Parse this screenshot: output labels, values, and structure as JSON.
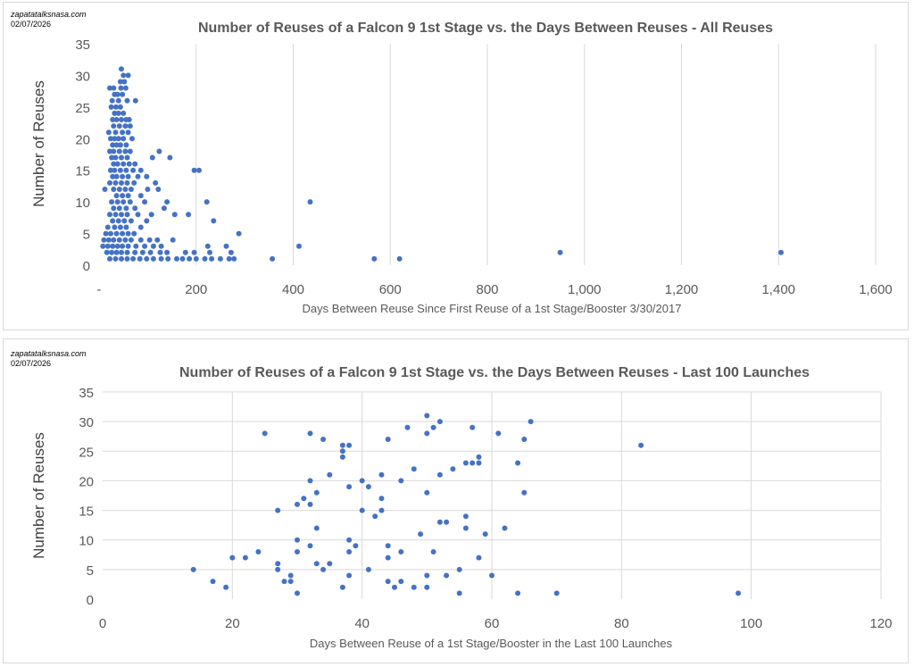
{
  "chart_data": [
    {
      "type": "scatter",
      "title": "Number of Reuses of a Falcon 9 1st Stage vs. the Days Between Reuses - All Reuses",
      "credit_site": "zapatatalksnasa.com",
      "credit_date": "02/07/2026",
      "xlabel": "Days Between Reuse Since First Reuse of a 1st Stage/Booster 3/30/2017",
      "ylabel": "Number of Reuses",
      "xlim": [
        0,
        1600
      ],
      "ylim": [
        0,
        35
      ],
      "x_ticks": [
        "-",
        "200",
        "400",
        "600",
        "800",
        "1,000",
        "1,200",
        "1,400",
        "1,600"
      ],
      "y_ticks": [
        "0",
        "5",
        "10",
        "15",
        "20",
        "25",
        "30",
        "35"
      ],
      "grid": "vertical",
      "color": "#4472c4",
      "points": [
        [
          46,
          31
        ],
        [
          50,
          30
        ],
        [
          60,
          30
        ],
        [
          44,
          29
        ],
        [
          52,
          29
        ],
        [
          22,
          28
        ],
        [
          30,
          28
        ],
        [
          45,
          28
        ],
        [
          55,
          28
        ],
        [
          32,
          27
        ],
        [
          38,
          27
        ],
        [
          48,
          27
        ],
        [
          27,
          26
        ],
        [
          40,
          26
        ],
        [
          58,
          26
        ],
        [
          75,
          26
        ],
        [
          25,
          25
        ],
        [
          35,
          25
        ],
        [
          44,
          25
        ],
        [
          32,
          24
        ],
        [
          40,
          24
        ],
        [
          50,
          24
        ],
        [
          28,
          23
        ],
        [
          36,
          23
        ],
        [
          46,
          23
        ],
        [
          56,
          23
        ],
        [
          62,
          23
        ],
        [
          30,
          22
        ],
        [
          42,
          22
        ],
        [
          54,
          22
        ],
        [
          64,
          22
        ],
        [
          20,
          21
        ],
        [
          34,
          21
        ],
        [
          48,
          21
        ],
        [
          60,
          21
        ],
        [
          24,
          20
        ],
        [
          32,
          20
        ],
        [
          40,
          20
        ],
        [
          50,
          20
        ],
        [
          68,
          20
        ],
        [
          28,
          19
        ],
        [
          36,
          19
        ],
        [
          44,
          19
        ],
        [
          56,
          19
        ],
        [
          22,
          18
        ],
        [
          30,
          18
        ],
        [
          42,
          18
        ],
        [
          54,
          18
        ],
        [
          64,
          18
        ],
        [
          124,
          18
        ],
        [
          26,
          17
        ],
        [
          34,
          17
        ],
        [
          46,
          17
        ],
        [
          58,
          17
        ],
        [
          110,
          17
        ],
        [
          146,
          17
        ],
        [
          30,
          16
        ],
        [
          38,
          16
        ],
        [
          50,
          16
        ],
        [
          62,
          16
        ],
        [
          74,
          16
        ],
        [
          24,
          15
        ],
        [
          32,
          15
        ],
        [
          44,
          15
        ],
        [
          56,
          15
        ],
        [
          70,
          15
        ],
        [
          86,
          15
        ],
        [
          196,
          15
        ],
        [
          206,
          15
        ],
        [
          28,
          14
        ],
        [
          36,
          14
        ],
        [
          48,
          14
        ],
        [
          60,
          14
        ],
        [
          80,
          14
        ],
        [
          98,
          14
        ],
        [
          22,
          13
        ],
        [
          34,
          13
        ],
        [
          46,
          13
        ],
        [
          58,
          13
        ],
        [
          72,
          13
        ],
        [
          116,
          13
        ],
        [
          12,
          12
        ],
        [
          30,
          12
        ],
        [
          42,
          12
        ],
        [
          54,
          12
        ],
        [
          66,
          12
        ],
        [
          100,
          12
        ],
        [
          122,
          12
        ],
        [
          36,
          11
        ],
        [
          48,
          11
        ],
        [
          60,
          11
        ],
        [
          86,
          11
        ],
        [
          26,
          10
        ],
        [
          38,
          10
        ],
        [
          50,
          10
        ],
        [
          64,
          10
        ],
        [
          94,
          10
        ],
        [
          140,
          10
        ],
        [
          222,
          10
        ],
        [
          435,
          10
        ],
        [
          30,
          9
        ],
        [
          42,
          9
        ],
        [
          56,
          9
        ],
        [
          74,
          9
        ],
        [
          134,
          9
        ],
        [
          22,
          8
        ],
        [
          34,
          8
        ],
        [
          46,
          8
        ],
        [
          58,
          8
        ],
        [
          80,
          8
        ],
        [
          108,
          8
        ],
        [
          156,
          8
        ],
        [
          184,
          8
        ],
        [
          28,
          7
        ],
        [
          40,
          7
        ],
        [
          52,
          7
        ],
        [
          66,
          7
        ],
        [
          98,
          7
        ],
        [
          236,
          7
        ],
        [
          18,
          6
        ],
        [
          32,
          6
        ],
        [
          44,
          6
        ],
        [
          56,
          6
        ],
        [
          86,
          6
        ],
        [
          14,
          5
        ],
        [
          24,
          5
        ],
        [
          36,
          5
        ],
        [
          48,
          5
        ],
        [
          60,
          5
        ],
        [
          72,
          5
        ],
        [
          288,
          5
        ],
        [
          10,
          4
        ],
        [
          20,
          4
        ],
        [
          30,
          4
        ],
        [
          42,
          4
        ],
        [
          54,
          4
        ],
        [
          66,
          4
        ],
        [
          86,
          4
        ],
        [
          104,
          4
        ],
        [
          120,
          4
        ],
        [
          152,
          4
        ],
        [
          8,
          3
        ],
        [
          18,
          3
        ],
        [
          28,
          3
        ],
        [
          38,
          3
        ],
        [
          48,
          3
        ],
        [
          60,
          3
        ],
        [
          76,
          3
        ],
        [
          94,
          3
        ],
        [
          112,
          3
        ],
        [
          128,
          3
        ],
        [
          224,
          3
        ],
        [
          262,
          3
        ],
        [
          412,
          3
        ],
        [
          16,
          2
        ],
        [
          26,
          2
        ],
        [
          36,
          2
        ],
        [
          46,
          2
        ],
        [
          58,
          2
        ],
        [
          74,
          2
        ],
        [
          90,
          2
        ],
        [
          106,
          2
        ],
        [
          126,
          2
        ],
        [
          140,
          2
        ],
        [
          178,
          2
        ],
        [
          196,
          2
        ],
        [
          228,
          2
        ],
        [
          272,
          2
        ],
        [
          950,
          2
        ],
        [
          1405,
          2
        ],
        [
          22,
          1
        ],
        [
          34,
          1
        ],
        [
          46,
          1
        ],
        [
          58,
          1
        ],
        [
          70,
          1
        ],
        [
          84,
          1
        ],
        [
          98,
          1
        ],
        [
          112,
          1
        ],
        [
          128,
          1
        ],
        [
          142,
          1
        ],
        [
          160,
          1
        ],
        [
          172,
          1
        ],
        [
          186,
          1
        ],
        [
          200,
          1
        ],
        [
          218,
          1
        ],
        [
          232,
          1
        ],
        [
          250,
          1
        ],
        [
          268,
          1
        ],
        [
          278,
          1
        ],
        [
          357,
          1
        ],
        [
          567,
          1
        ],
        [
          619,
          1
        ]
      ]
    },
    {
      "type": "scatter",
      "title": "Number of Reuses of a Falcon 9 1st Stage vs. the Days Between Reuses - Last 100 Launches",
      "credit_site": "zapatatalksnasa.com",
      "credit_date": "02/07/2026",
      "xlabel": "Days Between Reuse of a 1st Stage/Booster in the Last 100 Launches",
      "ylabel": "Number of Reuses",
      "xlim": [
        0,
        120
      ],
      "ylim": [
        0,
        35
      ],
      "x_ticks": [
        "0",
        "20",
        "40",
        "60",
        "80",
        "100",
        "120"
      ],
      "y_ticks": [
        "0",
        "5",
        "10",
        "15",
        "20",
        "25",
        "30",
        "35"
      ],
      "grid": "both",
      "color": "#4472c4",
      "points": [
        [
          14,
          5
        ],
        [
          17,
          3
        ],
        [
          19,
          2
        ],
        [
          20,
          7
        ],
        [
          22,
          7
        ],
        [
          24,
          8
        ],
        [
          25,
          28
        ],
        [
          27,
          15
        ],
        [
          27,
          6
        ],
        [
          27,
          5
        ],
        [
          28,
          3
        ],
        [
          29,
          4
        ],
        [
          29,
          3
        ],
        [
          30,
          16
        ],
        [
          30,
          10
        ],
        [
          30,
          8
        ],
        [
          30,
          1
        ],
        [
          31,
          17
        ],
        [
          32,
          28
        ],
        [
          32,
          20
        ],
        [
          32,
          16
        ],
        [
          32,
          9
        ],
        [
          33,
          18
        ],
        [
          33,
          12
        ],
        [
          33,
          6
        ],
        [
          34,
          27
        ],
        [
          34,
          5
        ],
        [
          35,
          21
        ],
        [
          35,
          6
        ],
        [
          37,
          26
        ],
        [
          37,
          25
        ],
        [
          37,
          24
        ],
        [
          37,
          2
        ],
        [
          38,
          26
        ],
        [
          38,
          19
        ],
        [
          38,
          10
        ],
        [
          38,
          8
        ],
        [
          38,
          4
        ],
        [
          39,
          9
        ],
        [
          40,
          20
        ],
        [
          40,
          15
        ],
        [
          41,
          19
        ],
        [
          41,
          5
        ],
        [
          42,
          14
        ],
        [
          43,
          21
        ],
        [
          43,
          17
        ],
        [
          43,
          15
        ],
        [
          44,
          27
        ],
        [
          44,
          9
        ],
        [
          44,
          7
        ],
        [
          44,
          3
        ],
        [
          45,
          2
        ],
        [
          46,
          20
        ],
        [
          46,
          8
        ],
        [
          46,
          3
        ],
        [
          47,
          29
        ],
        [
          48,
          22
        ],
        [
          48,
          2
        ],
        [
          49,
          11
        ],
        [
          50,
          31
        ],
        [
          50,
          28
        ],
        [
          50,
          18
        ],
        [
          50,
          4
        ],
        [
          50,
          2
        ],
        [
          51,
          29
        ],
        [
          51,
          8
        ],
        [
          52,
          30
        ],
        [
          52,
          21
        ],
        [
          52,
          13
        ],
        [
          53,
          13
        ],
        [
          53,
          4
        ],
        [
          54,
          22
        ],
        [
          55,
          5
        ],
        [
          55,
          1
        ],
        [
          56,
          23
        ],
        [
          56,
          14
        ],
        [
          56,
          12
        ],
        [
          57,
          29
        ],
        [
          57,
          23
        ],
        [
          58,
          24
        ],
        [
          58,
          23
        ],
        [
          58,
          7
        ],
        [
          59,
          11
        ],
        [
          60,
          4
        ],
        [
          61,
          28
        ],
        [
          62,
          12
        ],
        [
          64,
          23
        ],
        [
          64,
          1
        ],
        [
          65,
          27
        ],
        [
          65,
          18
        ],
        [
          66,
          30
        ],
        [
          70,
          1
        ],
        [
          83,
          26
        ],
        [
          98,
          1
        ]
      ]
    }
  ]
}
